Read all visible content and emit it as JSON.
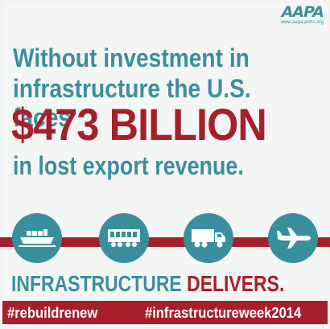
{
  "brand": {
    "logo_text": "AAPA",
    "logo_url": "www.aapa-ports.org"
  },
  "headline": {
    "line1": "Without investment in",
    "line2": "infrastructure the U.S. faces",
    "amount": "$473 BILLION",
    "line3": "in lost export revenue."
  },
  "icons": [
    "ship-icon",
    "train-icon",
    "truck-icon",
    "airplane-icon"
  ],
  "tagline": {
    "part1": "INFRASTRUCTURE ",
    "part2": "DELIVERS."
  },
  "footer": {
    "hashtag_left": "#rebuildrenew",
    "hashtag_right": "#infrastructureweek2014"
  },
  "colors": {
    "teal": "#3a8f9e",
    "red": "#a6202b",
    "background": "#f1f2f2"
  }
}
